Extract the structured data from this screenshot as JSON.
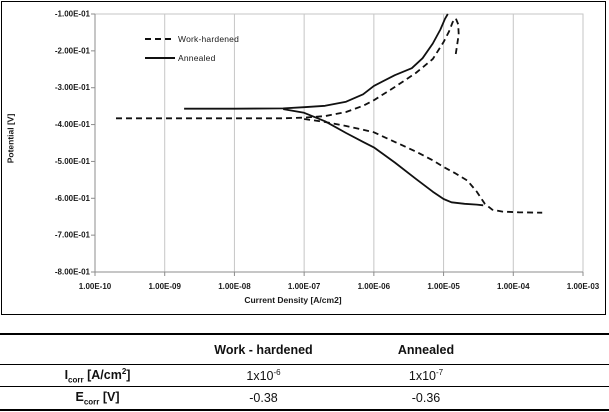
{
  "chart_data": {
    "type": "line",
    "title": "",
    "xlabel": "Current Density [A/cm2]",
    "ylabel": "Potential [V]",
    "x_scale": "log",
    "xlim": [
      1e-10,
      0.001
    ],
    "ylim": [
      -0.8,
      -0.1
    ],
    "grid": "vertical-decades-only",
    "legend_position": "top-left-inside",
    "x_tick_labels": [
      "1.00E-10",
      "1.00E-09",
      "1.00E-08",
      "1.00E-07",
      "1.00E-06",
      "1.00E-05",
      "1.00E-04",
      "1.00E-03"
    ],
    "y_tick_labels": [
      "-1.00E-01",
      "-2.00E-01",
      "-3.00E-01",
      "-4.00E-01",
      "-5.00E-01",
      "-6.00E-01",
      "-7.00E-01",
      "-8.00E-01"
    ],
    "y_tick_values": [
      -0.1,
      -0.2,
      -0.3,
      -0.4,
      -0.5,
      -0.6,
      -0.7,
      -0.8
    ],
    "series": [
      {
        "name": "Work-hardened",
        "line_style": "dashed",
        "color": "#111111",
        "branches": {
          "anodic": [
            [
              2e-10,
              -0.383
            ],
            [
              1e-09,
              -0.383
            ],
            [
              1e-08,
              -0.383
            ],
            [
              5e-08,
              -0.383
            ],
            [
              1e-07,
              -0.381
            ],
            [
              2e-07,
              -0.377
            ],
            [
              4e-07,
              -0.366
            ],
            [
              7e-07,
              -0.349
            ],
            [
              1e-06,
              -0.334
            ],
            [
              2e-06,
              -0.298
            ],
            [
              4e-06,
              -0.26
            ],
            [
              7e-06,
              -0.222
            ],
            [
              1e-05,
              -0.176
            ],
            [
              1.2e-05,
              -0.147
            ],
            [
              1.35e-05,
              -0.122
            ],
            [
              1.5e-05,
              -0.112
            ],
            [
              1.62e-05,
              -0.128
            ],
            [
              1.65e-05,
              -0.155
            ],
            [
              1.55e-05,
              -0.19
            ],
            [
              1.48e-05,
              -0.215
            ]
          ],
          "cathodic": [
            [
              1e-07,
              -0.385
            ],
            [
              2e-07,
              -0.393
            ],
            [
              4e-07,
              -0.404
            ],
            [
              7e-07,
              -0.414
            ],
            [
              1e-06,
              -0.421
            ],
            [
              2e-06,
              -0.447
            ],
            [
              4e-06,
              -0.473
            ],
            [
              7e-06,
              -0.497
            ],
            [
              1e-05,
              -0.515
            ],
            [
              1.5e-05,
              -0.533
            ],
            [
              2.2e-05,
              -0.552
            ],
            [
              3e-05,
              -0.582
            ],
            [
              3.9e-05,
              -0.615
            ],
            [
              5e-05,
              -0.631
            ],
            [
              7e-05,
              -0.636
            ],
            [
              0.00012,
              -0.638
            ],
            [
              0.00026,
              -0.639
            ]
          ]
        }
      },
      {
        "name": "Annealed",
        "line_style": "solid",
        "color": "#111111",
        "branches": {
          "anodic": [
            [
              1.9e-09,
              -0.357
            ],
            [
              1e-08,
              -0.357
            ],
            [
              5e-08,
              -0.356
            ],
            [
              1e-07,
              -0.353
            ],
            [
              2e-07,
              -0.349
            ],
            [
              4e-07,
              -0.338
            ],
            [
              7e-07,
              -0.318
            ],
            [
              1e-06,
              -0.295
            ],
            [
              2e-06,
              -0.266
            ],
            [
              3.5e-06,
              -0.247
            ],
            [
              5e-06,
              -0.22
            ],
            [
              7e-06,
              -0.18
            ],
            [
              9e-06,
              -0.142
            ],
            [
              1.05e-05,
              -0.113
            ],
            [
              1.15e-05,
              -0.1
            ]
          ],
          "cathodic": [
            [
              5e-08,
              -0.358
            ],
            [
              1e-07,
              -0.368
            ],
            [
              2e-07,
              -0.391
            ],
            [
              4e-07,
              -0.423
            ],
            [
              7e-07,
              -0.447
            ],
            [
              1e-06,
              -0.462
            ],
            [
              2e-06,
              -0.503
            ],
            [
              4e-06,
              -0.547
            ],
            [
              7e-06,
              -0.582
            ],
            [
              1e-05,
              -0.602
            ],
            [
              1.3e-05,
              -0.611
            ],
            [
              2e-05,
              -0.615
            ],
            [
              3e-05,
              -0.617
            ],
            [
              3.7e-05,
              -0.619
            ]
          ]
        }
      }
    ]
  },
  "table": {
    "headers": {
      "col1": "",
      "work_hardened": "Work - hardened",
      "annealed": "Annealed"
    },
    "rows": [
      {
        "sym": "I",
        "sub": "corr",
        "unit_pre": " [A/cm",
        "unit_sup": "2",
        "unit_post": "]",
        "wh_base": "1x10",
        "wh_sup": "-6",
        "an_base": "1x10",
        "an_sup": "-7"
      },
      {
        "sym": "E",
        "sub": "corr",
        "unit_pre": " [V]",
        "unit_sup": "",
        "unit_post": "",
        "wh_base": "-0.38",
        "wh_sup": "",
        "an_base": "-0.36",
        "an_sup": ""
      }
    ]
  }
}
